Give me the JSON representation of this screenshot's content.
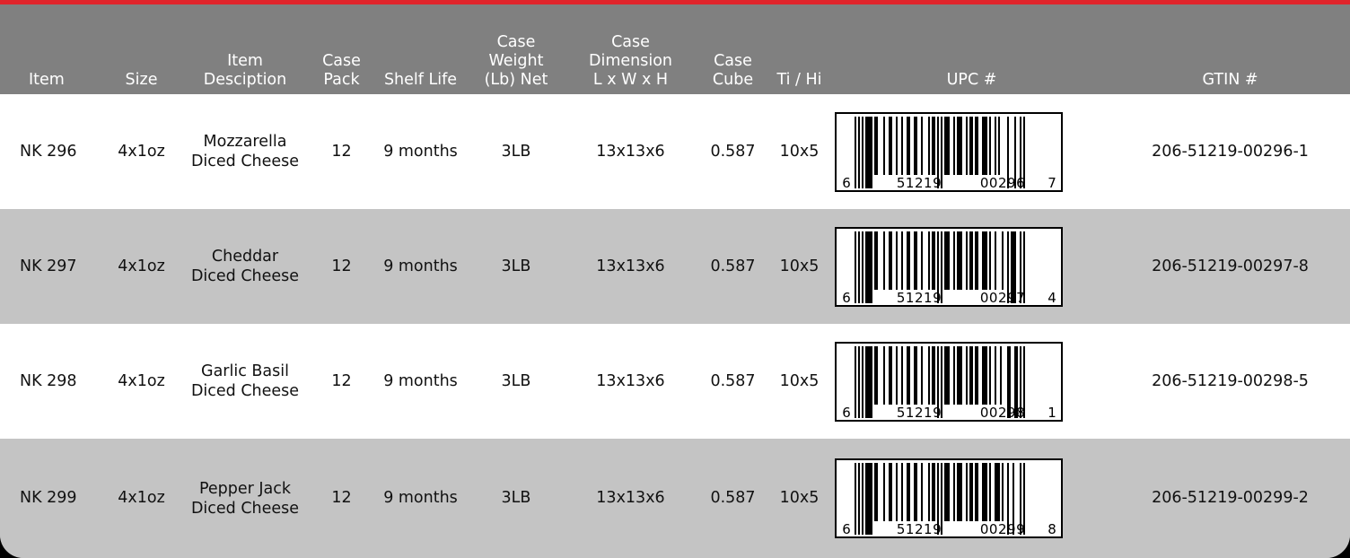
{
  "colors": {
    "accent_bar": "#e0242b",
    "header_bg": "#808080",
    "row_light": "#ffffff",
    "row_dark": "#c4c4c4",
    "frame": "#000000"
  },
  "headers": {
    "item": "Item",
    "size": "Size",
    "description": [
      "Item",
      "Desciption"
    ],
    "case_pack": [
      "Case",
      "Pack"
    ],
    "shelf_life": "Shelf Life",
    "case_weight": [
      "Case",
      "Weight",
      "(Lb) Net"
    ],
    "case_dimension": [
      "Case",
      "Dimension",
      "L x W x H"
    ],
    "case_cube": [
      "Case",
      "Cube"
    ],
    "ti_hi": "Ti / Hi",
    "upc": "UPC #",
    "gtin": "GTIN #"
  },
  "rows": [
    {
      "item": "NK 296",
      "size": "4x1oz",
      "description": [
        "Mozzarella",
        "Diced Cheese"
      ],
      "case_pack": "12",
      "shelf_life": "9 months",
      "case_weight": "3LB",
      "case_dimension": "13x13x6",
      "case_cube": "0.587",
      "ti_hi": "10x5",
      "upc": {
        "lead": "6",
        "left": "51219",
        "right": "00296",
        "check": "7"
      },
      "gtin": "206-51219-00296-1"
    },
    {
      "item": "NK 297",
      "size": "4x1oz",
      "description": [
        "Cheddar",
        "Diced Cheese"
      ],
      "case_pack": "12",
      "shelf_life": "9 months",
      "case_weight": "3LB",
      "case_dimension": "13x13x6",
      "case_cube": "0.587",
      "ti_hi": "10x5",
      "upc": {
        "lead": "6",
        "left": "51219",
        "right": "00297",
        "check": "4"
      },
      "gtin": "206-51219-00297-8"
    },
    {
      "item": "NK 298",
      "size": "4x1oz",
      "description": [
        "Garlic Basil",
        "Diced Cheese"
      ],
      "case_pack": "12",
      "shelf_life": "9 months",
      "case_weight": "3LB",
      "case_dimension": "13x13x6",
      "case_cube": "0.587",
      "ti_hi": "10x5",
      "upc": {
        "lead": "6",
        "left": "51219",
        "right": "00298",
        "check": "1"
      },
      "gtin": "206-51219-00298-5"
    },
    {
      "item": "NK 299",
      "size": "4x1oz",
      "description": [
        "Pepper Jack",
        "Diced Cheese"
      ],
      "case_pack": "12",
      "shelf_life": "9 months",
      "case_weight": "3LB",
      "case_dimension": "13x13x6",
      "case_cube": "0.587",
      "ti_hi": "10x5",
      "upc": {
        "lead": "6",
        "left": "51219",
        "right": "00299",
        "check": "8"
      },
      "gtin": "206-51219-00299-2"
    }
  ]
}
